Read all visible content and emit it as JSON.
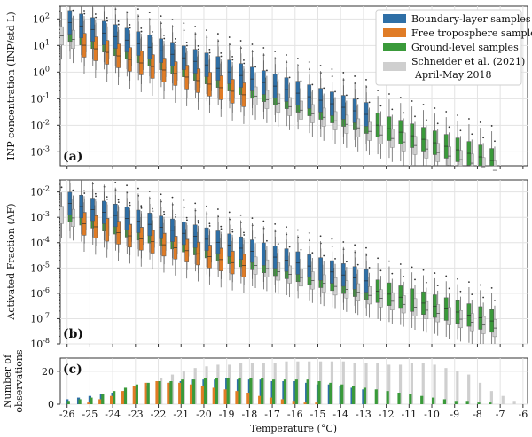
{
  "chart_data": [
    {
      "panel": "(a)",
      "type": "box",
      "ylabel": "INP concentration (INP/std L)",
      "yscale": "log",
      "ylim": [
        0.0003,
        300
      ],
      "yticks": [
        {
          "v": 0.001,
          "label": "10",
          "exp": "-3"
        },
        {
          "v": 0.01,
          "label": "10",
          "exp": "-2"
        },
        {
          "v": 0.1,
          "label": "10",
          "exp": "-1"
        },
        {
          "v": 1,
          "label": "10",
          "exp": "0"
        },
        {
          "v": 10,
          "label": "10",
          "exp": "1"
        },
        {
          "v": 100,
          "label": "10",
          "exp": "2"
        }
      ],
      "legend_position": "top-right",
      "legend": [
        {
          "name": "Boundary-layer samples",
          "color": "#2e6fa6"
        },
        {
          "name": "Free troposphere samples",
          "color": "#e07c26"
        },
        {
          "name": "Ground-level samples",
          "color": "#3a9a3a"
        },
        {
          "name": "Schneider et al. (2021)",
          "name2": "April-May 2018",
          "color": "#cfcfcf"
        }
      ]
    },
    {
      "panel": "(b)",
      "type": "box",
      "ylabel": "Activated Fraction (AF)",
      "yscale": "log",
      "ylim": [
        1e-08,
        0.03
      ],
      "yticks": [
        {
          "v": 1e-08,
          "label": "10",
          "exp": "-8"
        },
        {
          "v": 1e-07,
          "label": "10",
          "exp": "-7"
        },
        {
          "v": 1e-06,
          "label": "10",
          "exp": "-6"
        },
        {
          "v": 1e-05,
          "label": "10",
          "exp": "-5"
        },
        {
          "v": 0.0001,
          "label": "10",
          "exp": "-4"
        },
        {
          "v": 0.001,
          "label": "10",
          "exp": "-3"
        },
        {
          "v": 0.01,
          "label": "10",
          "exp": "-2"
        }
      ]
    },
    {
      "panel": "(c)",
      "type": "bar",
      "ylabel": "Number of",
      "ylabel2": "observations",
      "ylim": [
        0,
        28
      ],
      "yticks": [
        {
          "v": 0,
          "label": "0"
        },
        {
          "v": 20,
          "label": "20"
        }
      ]
    }
  ],
  "xaxis": {
    "label": "Temperature (°C)",
    "range": [
      -26.3,
      -5.8
    ],
    "ticks": [
      -26,
      -25,
      -24,
      -23,
      -22,
      -21,
      -20,
      -19,
      -18,
      -17,
      -16,
      -15,
      -14,
      -13,
      -12,
      -11,
      -10,
      -9,
      -8,
      -7,
      -6
    ],
    "tick_labels": [
      "-26",
      "-25",
      "-24",
      "-23",
      "-22",
      "-21",
      "-20",
      "-19",
      "-18",
      "-17",
      "-16",
      "-15",
      "-14",
      "-13",
      "-12",
      "-11",
      "-10",
      "-9",
      "-8",
      "-7",
      "-6"
    ]
  },
  "series_colors": {
    "bl": "#2e6fa6",
    "ft": "#e07c26",
    "gl": "#3a9a3a",
    "sch": "#cfcfcf",
    "sch_edge": "#888888"
  },
  "counts": {
    "temps": [
      -26,
      -25.5,
      -25,
      -24.5,
      -24,
      -23.5,
      -23,
      -22.5,
      -22,
      -21.5,
      -21,
      -20.5,
      -20,
      -19.5,
      -19,
      -18.5,
      -18,
      -17.5,
      -17,
      -16.5,
      -16,
      -15.5,
      -15,
      -14.5,
      -14,
      -13.5,
      -13,
      -12.5,
      -12,
      -11.5,
      -11,
      -10.5,
      -10,
      -9.5,
      -9,
      -8.5,
      -8,
      -7.5,
      -7,
      -6.5
    ],
    "bl": [
      3,
      4,
      5,
      6,
      7,
      8,
      10,
      11,
      12,
      13,
      14,
      15,
      15,
      15,
      16,
      15,
      15,
      15,
      14,
      14,
      14,
      13,
      12,
      12,
      11,
      10,
      9,
      0,
      0,
      0,
      0,
      0,
      0,
      0,
      0,
      0,
      0,
      0,
      0,
      0
    ],
    "ft": [
      0,
      0,
      1,
      3,
      5,
      8,
      11,
      13,
      14,
      13,
      13,
      12,
      11,
      10,
      9,
      8,
      7,
      5,
      4,
      3,
      2,
      1,
      1,
      0,
      0,
      0,
      0,
      0,
      0,
      0,
      0,
      0,
      0,
      0,
      0,
      0,
      0,
      0,
      0,
      0
    ],
    "gl": [
      2,
      3,
      4,
      6,
      8,
      10,
      12,
      13,
      14,
      14,
      15,
      15,
      16,
      16,
      16,
      16,
      16,
      16,
      15,
      15,
      15,
      15,
      14,
      13,
      12,
      11,
      10,
      9,
      8,
      7,
      6,
      5,
      4,
      3,
      2,
      2,
      1,
      1,
      0,
      0
    ],
    "sch": [
      0,
      0,
      0,
      0,
      0,
      0,
      0,
      0,
      16,
      18,
      20,
      22,
      23,
      24,
      24,
      25,
      25,
      25,
      25,
      26,
      26,
      26,
      26,
      26,
      26,
      25,
      25,
      25,
      24,
      24,
      25,
      25,
      24,
      22,
      20,
      18,
      13,
      8,
      5,
      2
    ]
  }
}
